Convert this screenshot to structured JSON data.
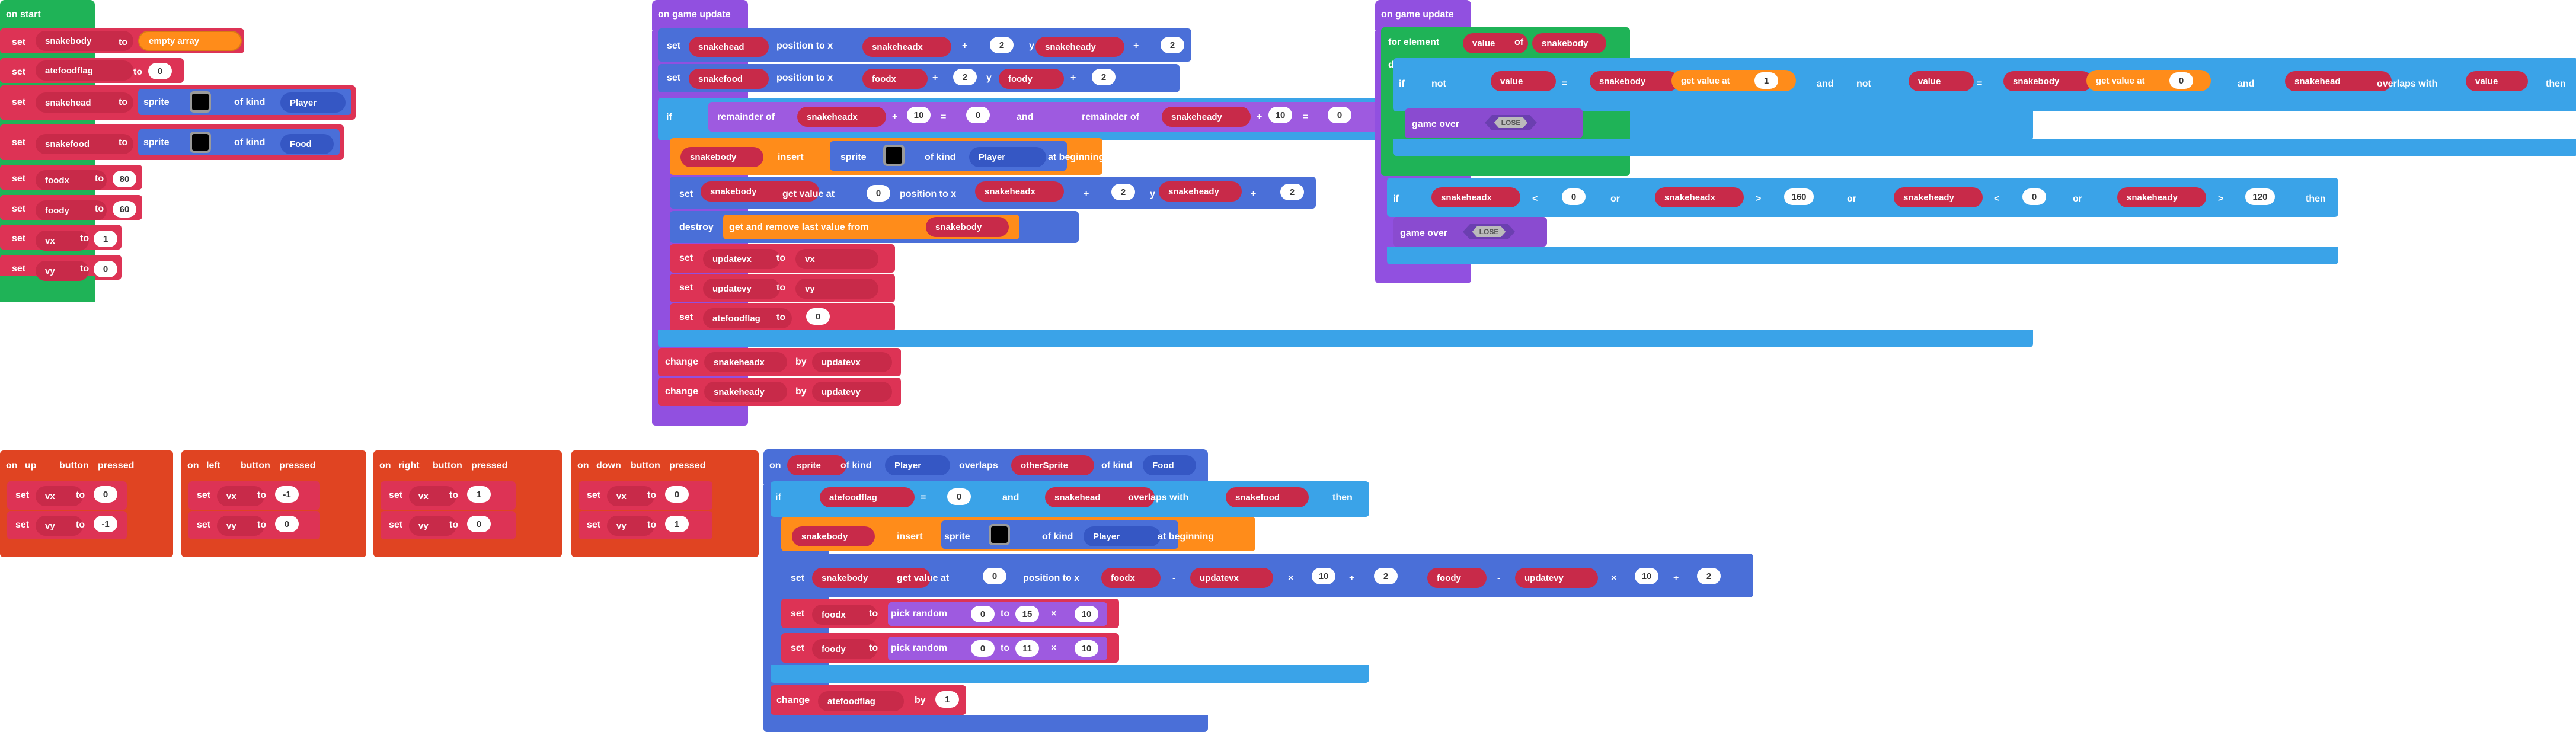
{
  "colors": {
    "events": "#2d7fd3",
    "variables": "#dd3355",
    "variables_dark": "#c82a49",
    "arrays": "#ff8c1a",
    "sprites": "#4a6fd8",
    "sprites_dark": "#3557c4",
    "logic": "#3aa3e8",
    "math": "#9e5ae0",
    "loops": "#1fb357",
    "game": "#8a4bd0",
    "controller": "#e04422",
    "game_update_hat": "#9150e0",
    "on_start_hat": "#1fb357"
  },
  "workspace": {
    "blocks": [
      {
        "name": "on-start-label",
        "text": "on start"
      },
      {
        "name": "set-keyword",
        "text": "set"
      },
      {
        "name": "var-snakebody",
        "text": "snakebody"
      },
      {
        "name": "to-keyword",
        "text": "to"
      },
      {
        "name": "empty-array",
        "text": "empty array"
      },
      {
        "name": "set-keyword",
        "text": "set"
      },
      {
        "name": "var-atefoodflag",
        "text": "atefoodflag"
      },
      {
        "name": "to-keyword",
        "text": "to"
      },
      {
        "name": "value-0",
        "text": "0"
      },
      {
        "name": "set-keyword",
        "text": "set"
      },
      {
        "name": "var-snakehead",
        "text": "snakehead"
      },
      {
        "name": "to-keyword",
        "text": "to"
      },
      {
        "name": "sprite-label",
        "text": "sprite"
      },
      {
        "name": "of-kind",
        "text": "of kind"
      },
      {
        "name": "kind-player",
        "text": "Player"
      },
      {
        "name": "set-keyword",
        "text": "set"
      },
      {
        "name": "var-snakefood",
        "text": "snakefood"
      },
      {
        "name": "to-keyword",
        "text": "to"
      },
      {
        "name": "sprite-label",
        "text": "sprite"
      },
      {
        "name": "of-kind",
        "text": "of kind"
      },
      {
        "name": "kind-food",
        "text": "Food"
      },
      {
        "name": "set-keyword",
        "text": "set"
      },
      {
        "name": "var-foodx",
        "text": "foodx"
      },
      {
        "name": "to-keyword",
        "text": "to"
      },
      {
        "name": "value-80",
        "text": "80"
      },
      {
        "name": "set-keyword",
        "text": "set"
      },
      {
        "name": "var-foody",
        "text": "foody"
      },
      {
        "name": "to-keyword",
        "text": "to"
      },
      {
        "name": "value-60",
        "text": "60"
      },
      {
        "name": "set-keyword",
        "text": "set"
      },
      {
        "name": "var-vx",
        "text": "vx"
      },
      {
        "name": "to-keyword",
        "text": "to"
      },
      {
        "name": "value-1",
        "text": "1"
      },
      {
        "name": "set-keyword",
        "text": "set"
      },
      {
        "name": "var-vy",
        "text": "vy"
      },
      {
        "name": "to-keyword",
        "text": "to"
      },
      {
        "name": "value-0",
        "text": "0"
      },
      {
        "name": "on-game-update-label",
        "text": "on game update"
      },
      {
        "name": "set-keyword",
        "text": "set"
      },
      {
        "name": "var-snakehead",
        "text": "snakehead"
      },
      {
        "name": "position-to-x",
        "text": "position to x"
      },
      {
        "name": "var-snakeheadx",
        "text": "snakeheadx"
      },
      {
        "name": "op-plus",
        "text": "+"
      },
      {
        "name": "value-2",
        "text": "2"
      },
      {
        "name": "y-label",
        "text": "y"
      },
      {
        "name": "var-snakeheady",
        "text": "snakeheady"
      },
      {
        "name": "op-plus",
        "text": "+"
      },
      {
        "name": "value-2",
        "text": "2"
      },
      {
        "name": "set-keyword",
        "text": "set"
      },
      {
        "name": "var-snakefood",
        "text": "snakefood"
      },
      {
        "name": "position-to-x",
        "text": "position to x"
      },
      {
        "name": "var-foodx",
        "text": "foodx"
      },
      {
        "name": "op-plus",
        "text": "+"
      },
      {
        "name": "value-2",
        "text": "2"
      },
      {
        "name": "y-label",
        "text": "y"
      },
      {
        "name": "var-foody",
        "text": "foody"
      },
      {
        "name": "op-plus",
        "text": "+"
      },
      {
        "name": "value-2",
        "text": "2"
      },
      {
        "name": "if-keyword",
        "text": "if"
      },
      {
        "name": "remainder-of",
        "text": "remainder of"
      },
      {
        "name": "var-snakeheadx",
        "text": "snakeheadx"
      },
      {
        "name": "op-plus",
        "text": "+"
      },
      {
        "name": "value-10",
        "text": "10"
      },
      {
        "name": "op-eq",
        "text": "="
      },
      {
        "name": "value-0",
        "text": "0"
      },
      {
        "name": "and-keyword",
        "text": "and"
      },
      {
        "name": "remainder-of",
        "text": "remainder of"
      },
      {
        "name": "var-snakeheady",
        "text": "snakeheady"
      },
      {
        "name": "op-plus",
        "text": "+"
      },
      {
        "name": "value-10",
        "text": "10"
      },
      {
        "name": "op-eq",
        "text": "="
      },
      {
        "name": "value-0",
        "text": "0"
      },
      {
        "name": "var-snakebody",
        "text": "snakebody"
      },
      {
        "name": "insert-keyword",
        "text": "insert"
      },
      {
        "name": "sprite-label",
        "text": "sprite"
      },
      {
        "name": "of-kind",
        "text": "of kind"
      },
      {
        "name": "kind-player",
        "text": "Player"
      },
      {
        "name": "at-beginning",
        "text": "at beginning"
      },
      {
        "name": "set-keyword",
        "text": "set"
      },
      {
        "name": "var-snakebody",
        "text": "snakebody"
      },
      {
        "name": "get-value-at",
        "text": "get value at"
      },
      {
        "name": "value-0",
        "text": "0"
      },
      {
        "name": "position-to-x",
        "text": "position to x"
      },
      {
        "name": "var-snakeheadx",
        "text": "snakeheadx"
      },
      {
        "name": "op-plus",
        "text": "+"
      },
      {
        "name": "value-2",
        "text": "2"
      },
      {
        "name": "y-label",
        "text": "y"
      },
      {
        "name": "var-snakeheady",
        "text": "snakeheady"
      },
      {
        "name": "op-plus",
        "text": "+"
      },
      {
        "name": "value-2",
        "text": "2"
      },
      {
        "name": "destroy-keyword",
        "text": "destroy"
      },
      {
        "name": "get-and-remove",
        "text": "get and remove last value from"
      },
      {
        "name": "var-snakebody",
        "text": "snakebody"
      },
      {
        "name": "set-keyword",
        "text": "set"
      },
      {
        "name": "var-updatevx",
        "text": "updatevx"
      },
      {
        "name": "to-keyword",
        "text": "to"
      },
      {
        "name": "var-vx",
        "text": "vx"
      },
      {
        "name": "set-keyword",
        "text": "set"
      },
      {
        "name": "var-updatevy",
        "text": "updatevy"
      },
      {
        "name": "to-keyword",
        "text": "to"
      },
      {
        "name": "var-vy",
        "text": "vy"
      },
      {
        "name": "set-keyword",
        "text": "set"
      },
      {
        "name": "var-atefoodflag",
        "text": "atefoodflag"
      },
      {
        "name": "to-keyword",
        "text": "to"
      },
      {
        "name": "value-0",
        "text": "0"
      },
      {
        "name": "change-keyword",
        "text": "change"
      },
      {
        "name": "var-snakeheadx",
        "text": "snakeheadx"
      },
      {
        "name": "by-keyword",
        "text": "by"
      },
      {
        "name": "var-updatevx",
        "text": "updatevx"
      },
      {
        "name": "change-keyword",
        "text": "change"
      },
      {
        "name": "var-snakeheady",
        "text": "snakeheady"
      },
      {
        "name": "by-keyword",
        "text": "by"
      },
      {
        "name": "var-updatevy",
        "text": "updatevy"
      },
      {
        "name": "on-game-update-label",
        "text": "on game update"
      },
      {
        "name": "for-element",
        "text": "for element"
      },
      {
        "name": "var-value",
        "text": "value"
      },
      {
        "name": "of-keyword",
        "text": "of"
      },
      {
        "name": "var-snakebody",
        "text": "snakebody"
      },
      {
        "name": "do-keyword",
        "text": "do"
      },
      {
        "name": "if-keyword",
        "text": "if"
      },
      {
        "name": "not-keyword",
        "text": "not"
      },
      {
        "name": "var-value",
        "text": "value"
      },
      {
        "name": "op-eq",
        "text": "="
      },
      {
        "name": "var-snakebody",
        "text": "snakebody"
      },
      {
        "name": "get-value-at",
        "text": "get value at"
      },
      {
        "name": "value-1",
        "text": "1"
      },
      {
        "name": "and-keyword",
        "text": "and"
      },
      {
        "name": "not-keyword",
        "text": "not"
      },
      {
        "name": "var-value",
        "text": "value"
      },
      {
        "name": "op-eq",
        "text": "="
      },
      {
        "name": "var-snakebody",
        "text": "snakebody"
      },
      {
        "name": "get-value-at",
        "text": "get value at"
      },
      {
        "name": "value-0",
        "text": "0"
      },
      {
        "name": "and-keyword",
        "text": "and"
      },
      {
        "name": "var-snakehead",
        "text": "snakehead"
      },
      {
        "name": "overlaps-with",
        "text": "overlaps with"
      },
      {
        "name": "var-value",
        "text": "value"
      },
      {
        "name": "then-keyword",
        "text": "then"
      },
      {
        "name": "game-over",
        "text": "game over"
      },
      {
        "name": "lose-label",
        "text": "LOSE"
      },
      {
        "name": "if-keyword",
        "text": "if"
      },
      {
        "name": "var-snakeheadx",
        "text": "snakeheadx"
      },
      {
        "name": "op-lt",
        "text": "<"
      },
      {
        "name": "value-0",
        "text": "0"
      },
      {
        "name": "or-keyword",
        "text": "or"
      },
      {
        "name": "var-snakeheadx",
        "text": "snakeheadx"
      },
      {
        "name": "op-gt",
        "text": ">"
      },
      {
        "name": "value-160",
        "text": "160"
      },
      {
        "name": "or-keyword",
        "text": "or"
      },
      {
        "name": "var-snakeheady",
        "text": "snakeheady"
      },
      {
        "name": "op-lt",
        "text": "<"
      },
      {
        "name": "value-0",
        "text": "0"
      },
      {
        "name": "or-keyword",
        "text": "or"
      },
      {
        "name": "var-snakeheady",
        "text": "snakeheady"
      },
      {
        "name": "op-gt",
        "text": ">"
      },
      {
        "name": "value-120",
        "text": "120"
      },
      {
        "name": "then-keyword",
        "text": "then"
      },
      {
        "name": "game-over",
        "text": "game over"
      },
      {
        "name": "lose-label",
        "text": "LOSE"
      },
      {
        "name": "on-keyword",
        "text": "on"
      },
      {
        "name": "button-up",
        "text": "up"
      },
      {
        "name": "button-keyword",
        "text": "button"
      },
      {
        "name": "pressed-keyword",
        "text": "pressed"
      },
      {
        "name": "set-keyword",
        "text": "set"
      },
      {
        "name": "var-vx",
        "text": "vx"
      },
      {
        "name": "to-keyword",
        "text": "to"
      },
      {
        "name": "value-0",
        "text": "0"
      },
      {
        "name": "set-keyword",
        "text": "set"
      },
      {
        "name": "var-vy",
        "text": "vy"
      },
      {
        "name": "to-keyword",
        "text": "to"
      },
      {
        "name": "value-neg1",
        "text": "-1"
      },
      {
        "name": "on-keyword",
        "text": "on"
      },
      {
        "name": "button-left",
        "text": "left"
      },
      {
        "name": "button-keyword",
        "text": "button"
      },
      {
        "name": "pressed-keyword",
        "text": "pressed"
      },
      {
        "name": "set-keyword",
        "text": "set"
      },
      {
        "name": "var-vx",
        "text": "vx"
      },
      {
        "name": "to-keyword",
        "text": "to"
      },
      {
        "name": "value-neg1",
        "text": "-1"
      },
      {
        "name": "set-keyword",
        "text": "set"
      },
      {
        "name": "var-vy",
        "text": "vy"
      },
      {
        "name": "to-keyword",
        "text": "to"
      },
      {
        "name": "value-0",
        "text": "0"
      },
      {
        "name": "on-keyword",
        "text": "on"
      },
      {
        "name": "button-right",
        "text": "right"
      },
      {
        "name": "button-keyword",
        "text": "button"
      },
      {
        "name": "pressed-keyword",
        "text": "pressed"
      },
      {
        "name": "set-keyword",
        "text": "set"
      },
      {
        "name": "var-vx",
        "text": "vx"
      },
      {
        "name": "to-keyword",
        "text": "to"
      },
      {
        "name": "value-1",
        "text": "1"
      },
      {
        "name": "set-keyword",
        "text": "set"
      },
      {
        "name": "var-vy",
        "text": "vy"
      },
      {
        "name": "to-keyword",
        "text": "to"
      },
      {
        "name": "value-0",
        "text": "0"
      },
      {
        "name": "on-keyword",
        "text": "on"
      },
      {
        "name": "button-down",
        "text": "down"
      },
      {
        "name": "button-keyword",
        "text": "button"
      },
      {
        "name": "pressed-keyword",
        "text": "pressed"
      },
      {
        "name": "set-keyword",
        "text": "set"
      },
      {
        "name": "var-vx",
        "text": "vx"
      },
      {
        "name": "to-keyword",
        "text": "to"
      },
      {
        "name": "value-0",
        "text": "0"
      },
      {
        "name": "set-keyword",
        "text": "set"
      },
      {
        "name": "var-vy",
        "text": "vy"
      },
      {
        "name": "to-keyword",
        "text": "to"
      },
      {
        "name": "value-1",
        "text": "1"
      },
      {
        "name": "on-keyword",
        "text": "on"
      },
      {
        "name": "var-sprite",
        "text": "sprite"
      },
      {
        "name": "of-kind",
        "text": "of kind"
      },
      {
        "name": "kind-player",
        "text": "Player"
      },
      {
        "name": "overlaps-keyword",
        "text": "overlaps"
      },
      {
        "name": "var-othersprite",
        "text": "otherSprite"
      },
      {
        "name": "of-kind",
        "text": "of kind"
      },
      {
        "name": "kind-food",
        "text": "Food"
      },
      {
        "name": "if-keyword",
        "text": "if"
      },
      {
        "name": "var-atefoodflag",
        "text": "atefoodflag"
      },
      {
        "name": "op-eq",
        "text": "="
      },
      {
        "name": "value-0",
        "text": "0"
      },
      {
        "name": "and-keyword",
        "text": "and"
      },
      {
        "name": "var-snakehead",
        "text": "snakehead"
      },
      {
        "name": "overlaps-with",
        "text": "overlaps with"
      },
      {
        "name": "var-snakefood",
        "text": "snakefood"
      },
      {
        "name": "then-keyword",
        "text": "then"
      },
      {
        "name": "var-snakebody",
        "text": "snakebody"
      },
      {
        "name": "insert-keyword",
        "text": "insert"
      },
      {
        "name": "sprite-label",
        "text": "sprite"
      },
      {
        "name": "of-kind",
        "text": "of kind"
      },
      {
        "name": "kind-player",
        "text": "Player"
      },
      {
        "name": "at-beginning",
        "text": "at beginning"
      },
      {
        "name": "set-keyword",
        "text": "set"
      },
      {
        "name": "var-snakebody",
        "text": "snakebody"
      },
      {
        "name": "get-value-at",
        "text": "get value at"
      },
      {
        "name": "value-0",
        "text": "0"
      },
      {
        "name": "position-to-x",
        "text": "position to x"
      },
      {
        "name": "var-foodx",
        "text": "foodx"
      },
      {
        "name": "op-minus",
        "text": "-"
      },
      {
        "name": "var-updatevx",
        "text": "updatevx"
      },
      {
        "name": "op-times",
        "text": "×"
      },
      {
        "name": "value-10",
        "text": "10"
      },
      {
        "name": "op-plus",
        "text": "+"
      },
      {
        "name": "value-2",
        "text": "2"
      },
      {
        "name": "y-label",
        "text": "y"
      },
      {
        "name": "var-foody",
        "text": "foody"
      },
      {
        "name": "op-minus",
        "text": "-"
      },
      {
        "name": "var-updatevy",
        "text": "updatevy"
      },
      {
        "name": "op-times",
        "text": "×"
      },
      {
        "name": "value-10",
        "text": "10"
      },
      {
        "name": "op-plus",
        "text": "+"
      },
      {
        "name": "value-2",
        "text": "2"
      },
      {
        "name": "set-keyword",
        "text": "set"
      },
      {
        "name": "var-foodx",
        "text": "foodx"
      },
      {
        "name": "to-keyword",
        "text": "to"
      },
      {
        "name": "pick-random",
        "text": "pick random"
      },
      {
        "name": "value-0",
        "text": "0"
      },
      {
        "name": "to-keyword",
        "text": "to"
      },
      {
        "name": "value-15",
        "text": "15"
      },
      {
        "name": "op-times",
        "text": "×"
      },
      {
        "name": "value-10",
        "text": "10"
      },
      {
        "name": "set-keyword",
        "text": "set"
      },
      {
        "name": "var-foody",
        "text": "foody"
      },
      {
        "name": "to-keyword",
        "text": "to"
      },
      {
        "name": "pick-random",
        "text": "pick random"
      },
      {
        "name": "value-0",
        "text": "0"
      },
      {
        "name": "to-keyword",
        "text": "to"
      },
      {
        "name": "value-11",
        "text": "11"
      },
      {
        "name": "op-times",
        "text": "×"
      },
      {
        "name": "value-10",
        "text": "10"
      },
      {
        "name": "change-keyword",
        "text": "change"
      },
      {
        "name": "var-atefoodflag",
        "text": "atefoodflag"
      },
      {
        "name": "by-keyword",
        "text": "by"
      },
      {
        "name": "value-1",
        "text": "1"
      }
    ]
  }
}
